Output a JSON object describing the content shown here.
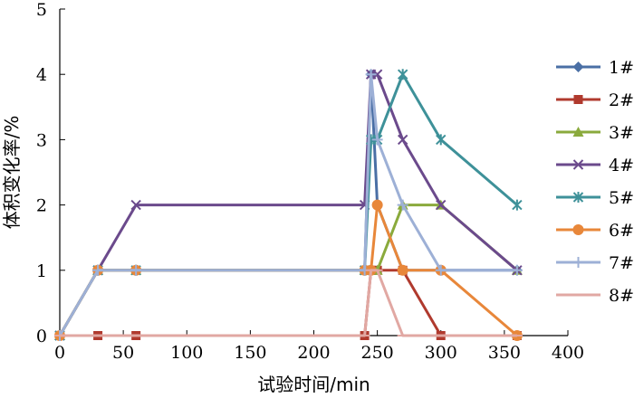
{
  "chart_data": {
    "type": "line",
    "xlabel": "试验时间/min",
    "ylabel": "体积变化率/%",
    "xlim": [
      0,
      400
    ],
    "ylim": [
      0,
      5
    ],
    "x_ticks": [
      "0",
      "50",
      "100",
      "150",
      "200",
      "250",
      "300",
      "350",
      "400"
    ],
    "y_ticks": [
      "0",
      "1",
      "2",
      "3",
      "4",
      "5"
    ],
    "grid": false,
    "legend_position": "right",
    "series": [
      {
        "name": "1#",
        "color": "#4A6FA5",
        "marker": "diamond",
        "x": [
          0,
          30,
          60,
          240,
          245,
          250,
          270,
          300,
          360
        ],
        "y": [
          0,
          1,
          1,
          1,
          4,
          2,
          1,
          1,
          1
        ]
      },
      {
        "name": "2#",
        "color": "#B03A2E",
        "marker": "square",
        "x": [
          0,
          30,
          60,
          240,
          245,
          250,
          270,
          300,
          360
        ],
        "y": [
          0,
          0,
          0,
          0,
          1,
          1,
          1,
          0,
          0
        ]
      },
      {
        "name": "3#",
        "color": "#8AAA3C",
        "marker": "triangle",
        "x": [
          0,
          30,
          60,
          240,
          245,
          250,
          270,
          300,
          360
        ],
        "y": [
          0,
          1,
          1,
          1,
          1,
          1,
          2,
          2,
          1
        ]
      },
      {
        "name": "4#",
        "color": "#6B4A8C",
        "marker": "x",
        "x": [
          0,
          30,
          60,
          240,
          245,
          250,
          270,
          300,
          360
        ],
        "y": [
          0,
          1,
          2,
          2,
          4,
          4,
          3,
          2,
          1
        ]
      },
      {
        "name": "5#",
        "color": "#3E9199",
        "marker": "asterisk",
        "x": [
          0,
          30,
          60,
          240,
          245,
          250,
          270,
          300,
          360
        ],
        "y": [
          0,
          1,
          1,
          1,
          3,
          3,
          4,
          3,
          2
        ]
      },
      {
        "name": "6#",
        "color": "#E8873A",
        "marker": "circle",
        "x": [
          0,
          30,
          60,
          240,
          245,
          250,
          270,
          300,
          360
        ],
        "y": [
          0,
          1,
          1,
          1,
          1,
          2,
          1,
          1,
          0
        ]
      },
      {
        "name": "7#",
        "color": "#9DB0D6",
        "marker": "plus",
        "x": [
          0,
          30,
          60,
          240,
          245,
          250,
          270,
          300,
          360
        ],
        "y": [
          0,
          1,
          1,
          1,
          4,
          3,
          2,
          1,
          1
        ]
      },
      {
        "name": "8#",
        "color": "#E1A8A3",
        "marker": "dash",
        "x": [
          0,
          30,
          60,
          240,
          245,
          250,
          270,
          300,
          360
        ],
        "y": [
          0,
          0,
          0,
          0,
          1,
          1,
          0,
          0,
          0
        ]
      }
    ]
  }
}
